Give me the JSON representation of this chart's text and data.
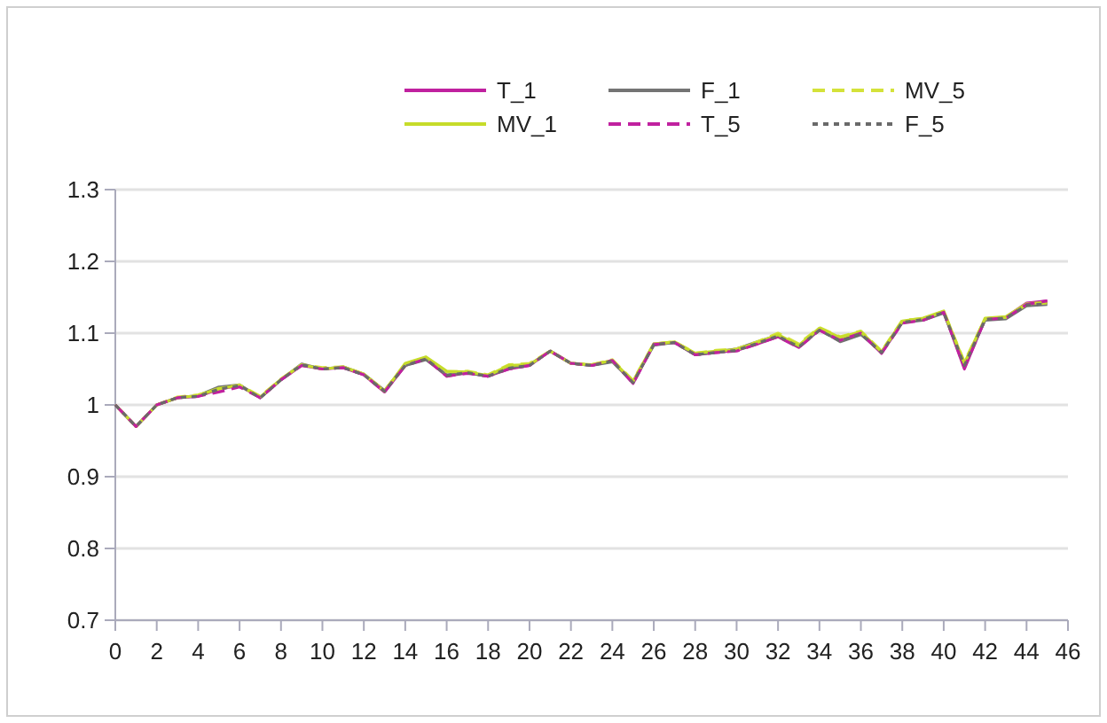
{
  "chart_data": {
    "type": "line",
    "x": [
      0,
      1,
      2,
      3,
      4,
      5,
      6,
      7,
      8,
      9,
      10,
      11,
      12,
      13,
      14,
      15,
      16,
      17,
      18,
      19,
      20,
      21,
      22,
      23,
      24,
      25,
      26,
      27,
      28,
      29,
      30,
      31,
      32,
      33,
      34,
      35,
      36,
      37,
      38,
      39,
      40,
      41,
      42,
      43,
      44,
      45
    ],
    "series": [
      {
        "name": "T_1",
        "color": "#c0219f",
        "line_style": "solid",
        "values": [
          1.0,
          0.97,
          1.0,
          1.01,
          1.012,
          1.022,
          1.027,
          1.01,
          1.035,
          1.055,
          1.05,
          1.052,
          1.042,
          1.018,
          1.055,
          1.065,
          1.04,
          1.045,
          1.04,
          1.05,
          1.055,
          1.075,
          1.058,
          1.055,
          1.062,
          1.03,
          1.085,
          1.087,
          1.07,
          1.073,
          1.076,
          1.085,
          1.095,
          1.08,
          1.105,
          1.09,
          1.1,
          1.072,
          1.115,
          1.12,
          1.13,
          1.05,
          1.12,
          1.122,
          1.142,
          1.145
        ]
      },
      {
        "name": "F_1",
        "color": "#747474",
        "line_style": "solid",
        "values": [
          1.0,
          0.97,
          1.0,
          1.01,
          1.013,
          1.025,
          1.028,
          1.01,
          1.035,
          1.057,
          1.05,
          1.053,
          1.043,
          1.02,
          1.055,
          1.063,
          1.042,
          1.045,
          1.04,
          1.052,
          1.056,
          1.075,
          1.058,
          1.055,
          1.06,
          1.032,
          1.083,
          1.087,
          1.07,
          1.074,
          1.078,
          1.088,
          1.097,
          1.082,
          1.105,
          1.088,
          1.098,
          1.074,
          1.115,
          1.118,
          1.128,
          1.057,
          1.118,
          1.12,
          1.138,
          1.14
        ]
      },
      {
        "name": "MV_5",
        "color": "#d4e23a",
        "line_style": "dashed",
        "values": [
          1.0,
          0.97,
          1.0,
          1.011,
          1.014,
          1.022,
          1.028,
          1.012,
          1.036,
          1.056,
          1.052,
          1.053,
          1.043,
          1.02,
          1.057,
          1.066,
          1.046,
          1.047,
          1.042,
          1.056,
          1.058,
          1.075,
          1.058,
          1.056,
          1.063,
          1.034,
          1.085,
          1.088,
          1.072,
          1.076,
          1.078,
          1.088,
          1.1,
          1.085,
          1.108,
          1.095,
          1.103,
          1.075,
          1.118,
          1.12,
          1.13,
          1.06,
          1.12,
          1.122,
          1.14,
          1.142
        ]
      },
      {
        "name": "MV_1",
        "color": "#c6dc2a",
        "line_style": "solid",
        "values": [
          1.0,
          0.97,
          1.0,
          1.01,
          1.013,
          1.023,
          1.027,
          1.011,
          1.036,
          1.056,
          1.05,
          1.053,
          1.043,
          1.019,
          1.058,
          1.067,
          1.047,
          1.046,
          1.041,
          1.055,
          1.056,
          1.075,
          1.058,
          1.056,
          1.062,
          1.033,
          1.085,
          1.088,
          1.072,
          1.075,
          1.077,
          1.087,
          1.098,
          1.083,
          1.107,
          1.094,
          1.102,
          1.074,
          1.117,
          1.121,
          1.131,
          1.058,
          1.121,
          1.123,
          1.141,
          1.143
        ]
      },
      {
        "name": "T_5",
        "color": "#c0219f",
        "line_style": "dashed",
        "values": [
          1.0,
          0.97,
          1.0,
          1.01,
          1.012,
          1.018,
          1.025,
          1.01,
          1.035,
          1.055,
          1.05,
          1.052,
          1.042,
          1.018,
          1.055,
          1.064,
          1.04,
          1.044,
          1.04,
          1.05,
          1.055,
          1.075,
          1.058,
          1.055,
          1.062,
          1.03,
          1.084,
          1.087,
          1.07,
          1.073,
          1.075,
          1.085,
          1.095,
          1.08,
          1.104,
          1.09,
          1.1,
          1.072,
          1.114,
          1.118,
          1.129,
          1.052,
          1.119,
          1.121,
          1.14,
          1.145
        ]
      },
      {
        "name": "F_5",
        "color": "#6a6a6a",
        "line_style": "dotted",
        "values": [
          1.0,
          0.97,
          1.0,
          1.01,
          1.012,
          1.022,
          1.027,
          1.01,
          1.035,
          1.056,
          1.05,
          1.052,
          1.042,
          1.019,
          1.055,
          1.064,
          1.041,
          1.045,
          1.04,
          1.051,
          1.055,
          1.075,
          1.058,
          1.055,
          1.061,
          1.031,
          1.084,
          1.087,
          1.07,
          1.073,
          1.076,
          1.086,
          1.096,
          1.081,
          1.104,
          1.089,
          1.099,
          1.073,
          1.115,
          1.119,
          1.129,
          1.055,
          1.119,
          1.121,
          1.139,
          1.141
        ]
      }
    ],
    "xlim": [
      0,
      46
    ],
    "xticks": [
      0,
      2,
      4,
      6,
      8,
      10,
      12,
      14,
      16,
      18,
      20,
      22,
      24,
      26,
      28,
      30,
      32,
      34,
      36,
      38,
      40,
      42,
      44,
      46
    ],
    "ylim": [
      0.7,
      1.3
    ],
    "yticks": [
      0.7,
      0.8,
      0.9,
      1,
      1.1,
      1.2,
      1.3
    ],
    "grid": "y",
    "legend": "top",
    "marker": "none"
  }
}
